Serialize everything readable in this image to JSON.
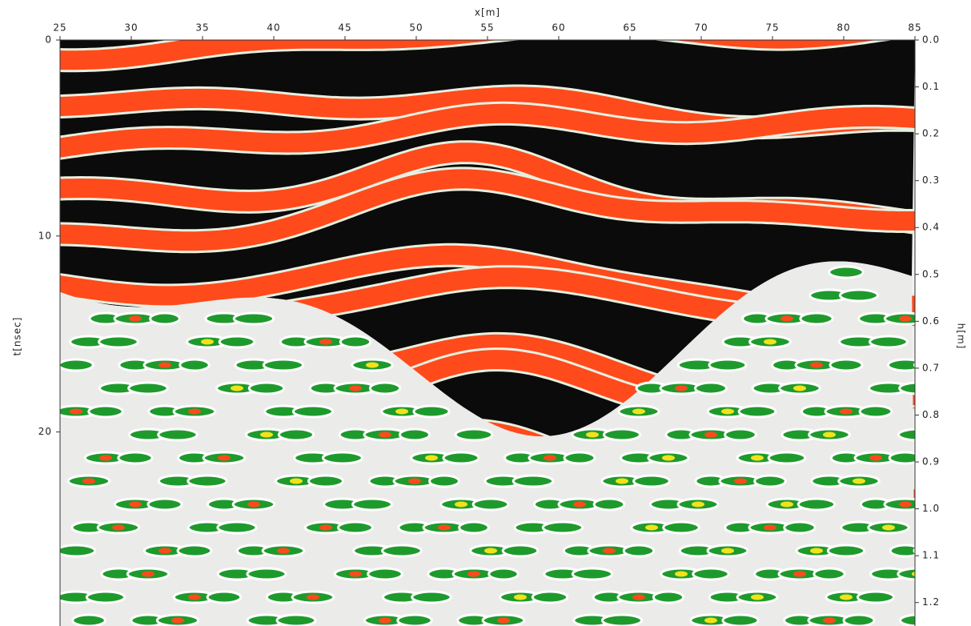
{
  "chart_data": {
    "type": "radargram",
    "xlabel": "x[m]",
    "ylabel": "t[nsec]",
    "y2label": "h[m]",
    "xlim": [
      25,
      85
    ],
    "xticks": [
      25,
      30,
      35,
      40,
      45,
      50,
      55,
      60,
      65,
      70,
      75,
      80,
      85
    ],
    "ylim": [
      0,
      29.9
    ],
    "yticks": [
      0,
      10,
      20
    ],
    "y2lim": [
      0,
      1.25
    ],
    "y2ticks": [
      {
        "value": 0,
        "label": "0.0"
      },
      {
        "value": 0.1,
        "label": "0.1"
      },
      {
        "value": 0.2,
        "label": "0.2"
      },
      {
        "value": 0.3,
        "label": "0.3"
      },
      {
        "value": 0.4,
        "label": "0.4"
      },
      {
        "value": 0.5,
        "label": "0.5"
      },
      {
        "value": 0.6,
        "label": "0.6"
      },
      {
        "value": 0.7,
        "label": "0.7"
      },
      {
        "value": 0.8,
        "label": "0.8"
      },
      {
        "value": 0.9,
        "label": "0.9"
      },
      {
        "value": 1.0,
        "label": "1.0"
      },
      {
        "value": 1.1,
        "label": "1.1"
      },
      {
        "value": 1.2,
        "label": "1.2"
      }
    ]
  }
}
